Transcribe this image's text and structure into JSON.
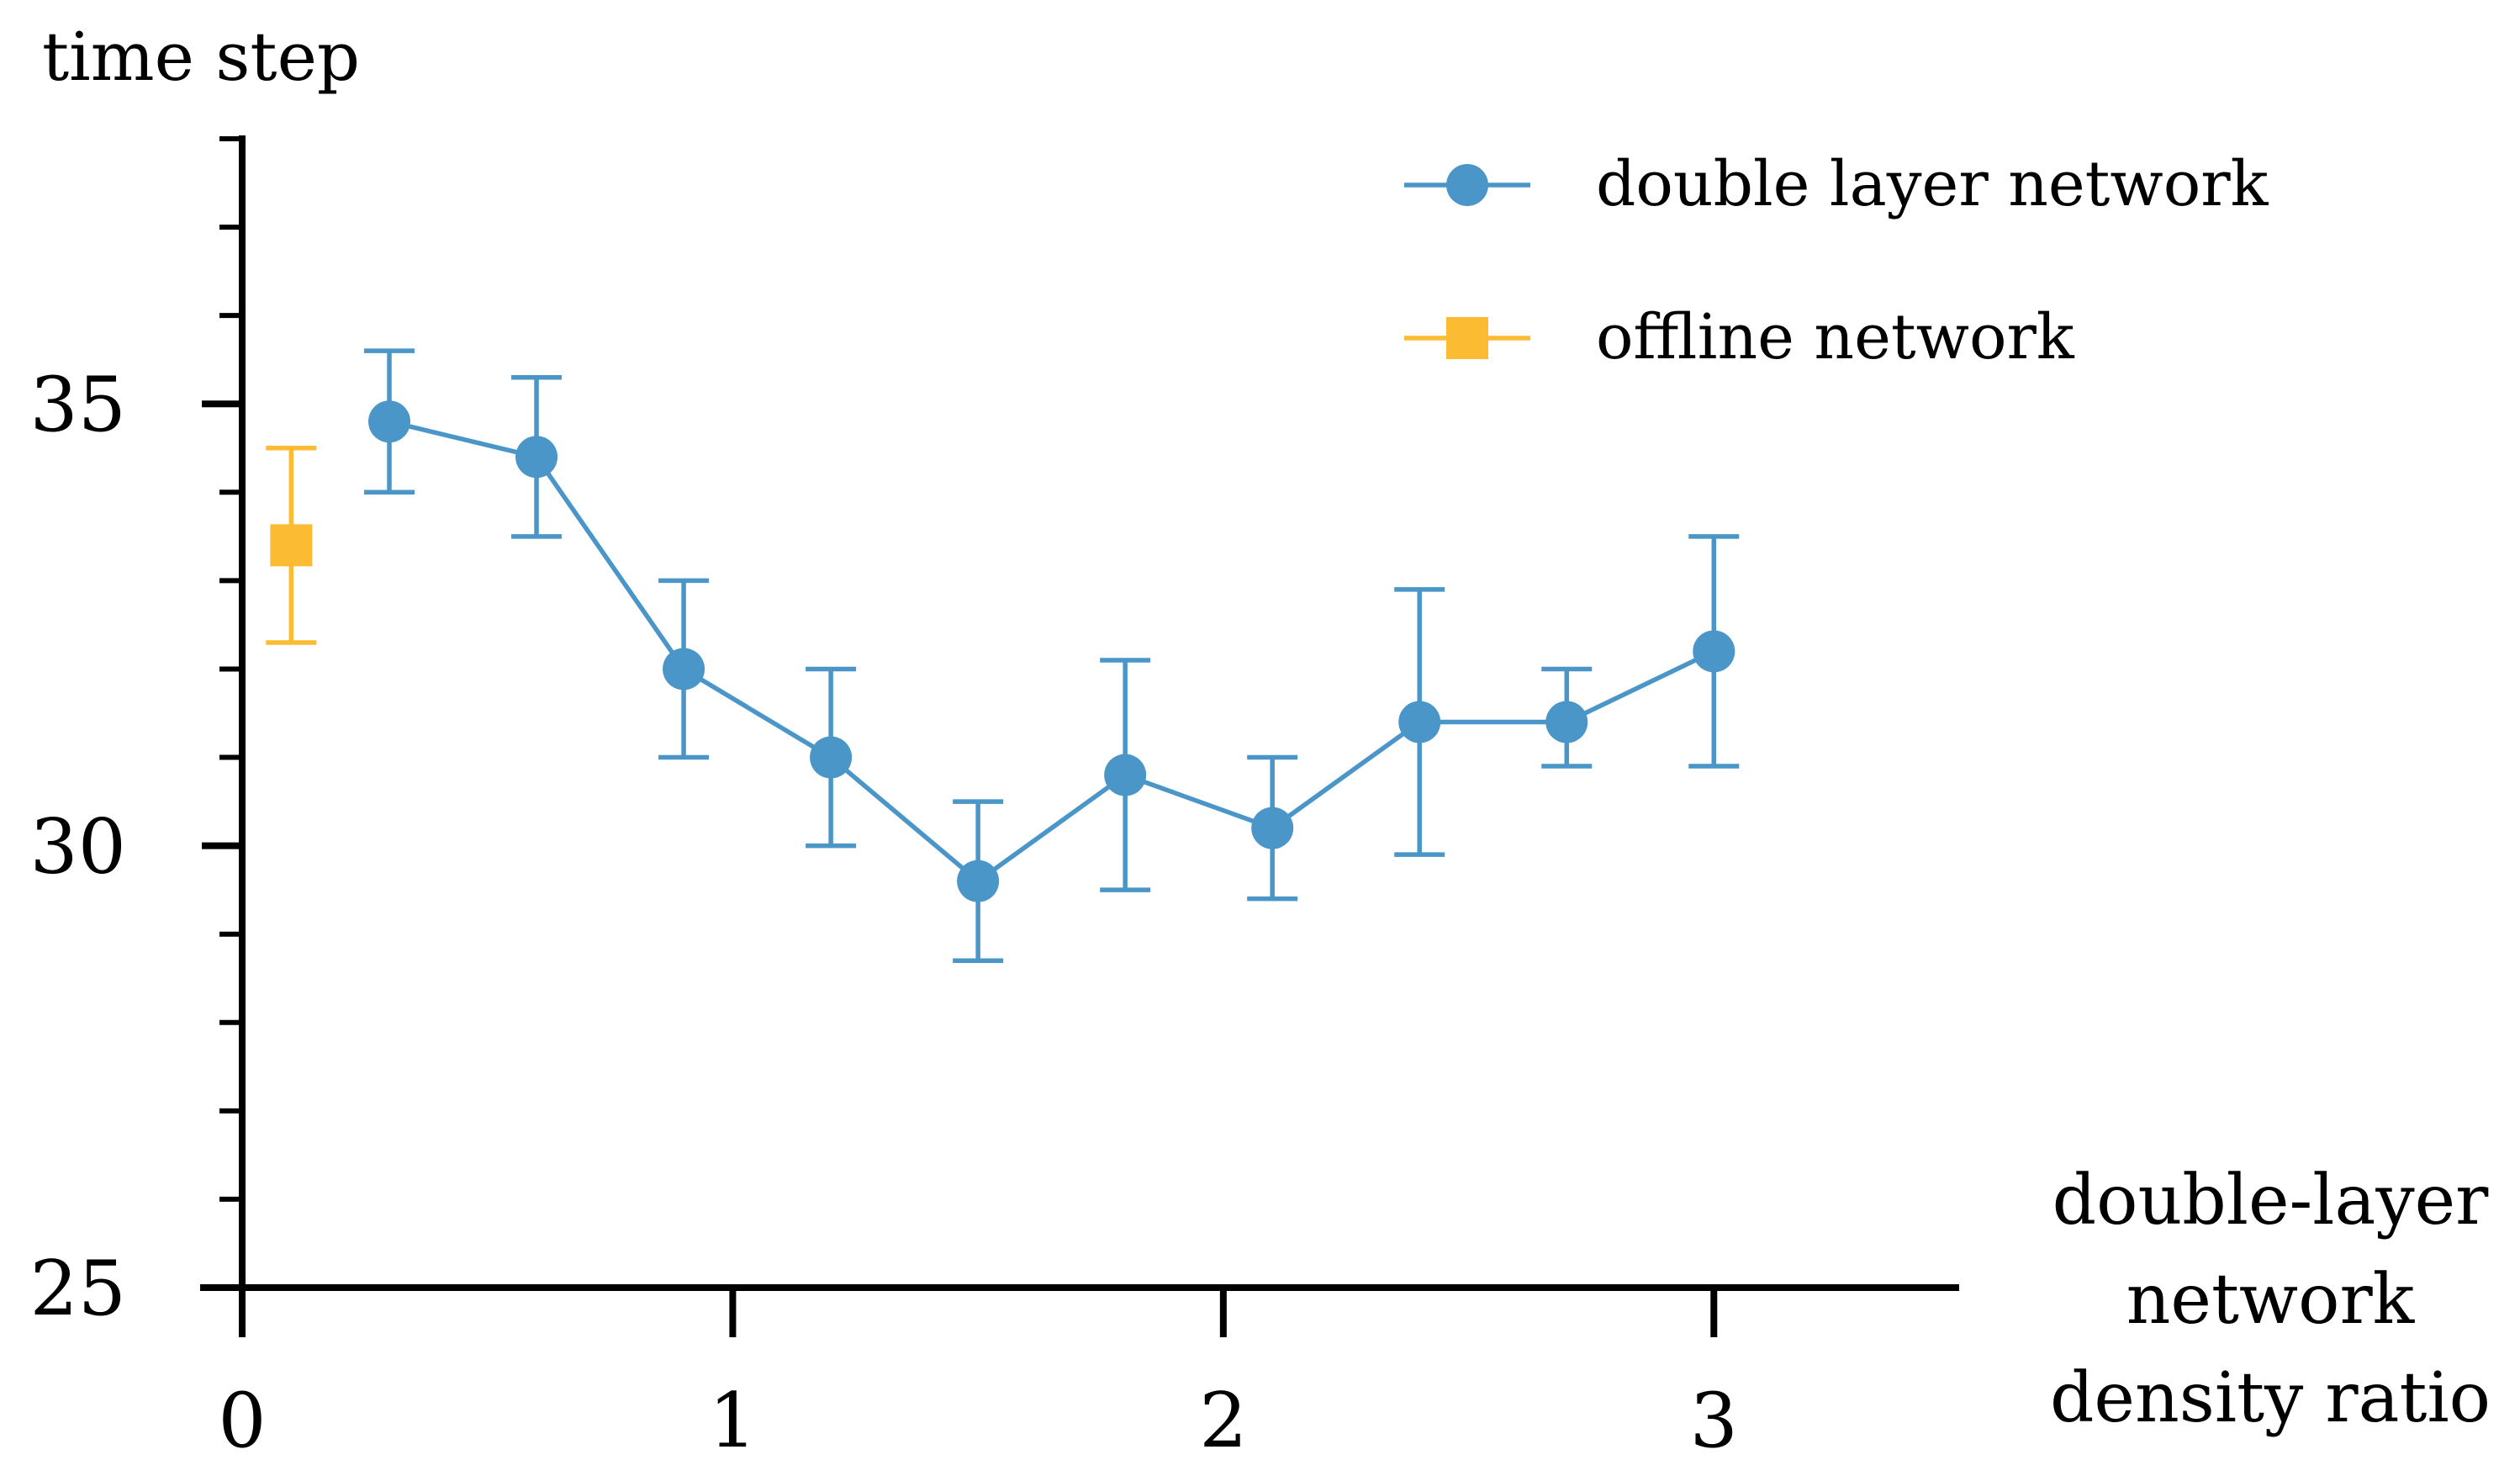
{
  "chart_data": {
    "type": "line",
    "ylabel": "time step",
    "xlabel_lines": [
      "double-layer",
      "network",
      "density ratio"
    ],
    "xlim": [
      0,
      3.5
    ],
    "ylim": [
      25,
      38
    ],
    "x_ticks": [
      0,
      1,
      2,
      3
    ],
    "y_ticks": [
      25,
      30,
      35
    ],
    "y_minor_step": 1,
    "grid": false,
    "legend_position": "top-right",
    "series": [
      {
        "name": "double layer network",
        "color": "#4a96c8",
        "marker": "circle",
        "x": [
          0.3,
          0.6,
          0.9,
          1.2,
          1.5,
          1.8,
          2.1,
          2.4,
          2.7,
          3.0
        ],
        "y": [
          34.8,
          34.4,
          32.0,
          31.0,
          29.6,
          30.8,
          30.2,
          31.4,
          31.4,
          32.2
        ],
        "err_low": [
          34.0,
          33.5,
          31.0,
          30.0,
          28.7,
          29.5,
          29.4,
          29.9,
          30.9,
          30.9
        ],
        "err_high": [
          35.6,
          35.3,
          33.0,
          32.0,
          30.5,
          32.1,
          31.0,
          32.9,
          32.0,
          33.5
        ]
      },
      {
        "name": "offline network",
        "color": "#fbbb32",
        "marker": "square",
        "x": [
          0.1
        ],
        "y": [
          33.4
        ],
        "err_low": [
          32.3
        ],
        "err_high": [
          34.5
        ]
      }
    ]
  }
}
